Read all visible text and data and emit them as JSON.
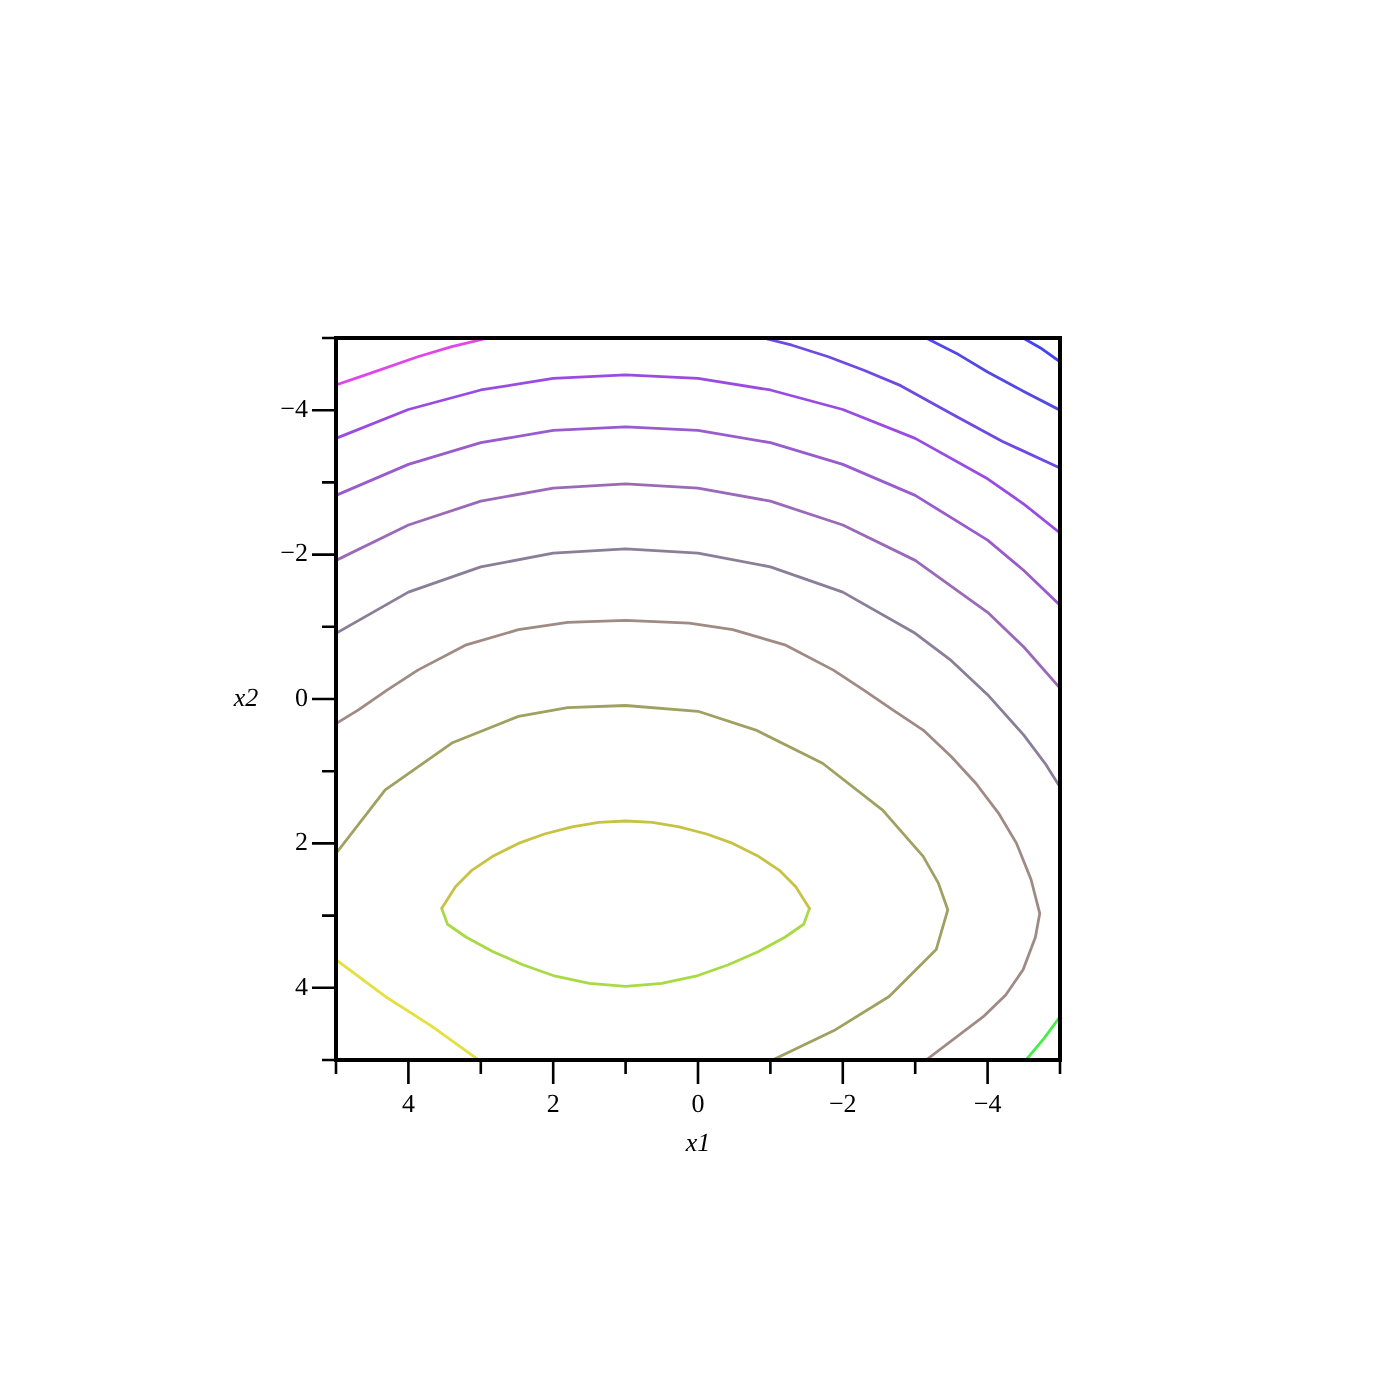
{
  "chart_data": {
    "type": "line",
    "xlabel": "x1",
    "ylabel": "x2",
    "xlim": [
      5,
      -5
    ],
    "ylim": [
      5,
      -5
    ],
    "xticks": [
      {
        "value": 5,
        "label": null
      },
      4,
      {
        "value": 3,
        "label": null
      },
      2,
      {
        "value": 1,
        "label": null
      },
      0,
      {
        "value": -1,
        "label": null
      },
      -2,
      {
        "value": -3,
        "label": null
      },
      -4,
      {
        "value": -5,
        "label": null
      }
    ],
    "yticks": [
      {
        "value": -5,
        "label": null
      },
      -4,
      {
        "value": -3,
        "label": null
      },
      -2,
      {
        "value": -1,
        "label": null
      },
      0,
      {
        "value": 1,
        "label": null
      },
      2,
      {
        "value": 3,
        "label": null
      },
      4,
      {
        "value": 5,
        "label": null
      }
    ],
    "series": [
      {
        "x": [
          -4.49,
          -4.75,
          -5
        ],
        "values": [
          -5,
          -4.85,
          -4.67
        ],
        "color": "#4444ee"
      },
      {
        "x": [
          -3.15,
          -3.6,
          -4,
          -4.5,
          -5
        ],
        "values": [
          -5,
          -4.77,
          -4.53,
          -4.26,
          -4
        ],
        "color": "#5248e6"
      },
      {
        "x": [
          5,
          4.5,
          3.87,
          3.4,
          2.9
        ],
        "values": [
          -4.35,
          -4.52,
          -4.74,
          -4.88,
          -5
        ],
        "color": "#e046e8"
      },
      {
        "x": [
          -0.9,
          -1.3,
          -1.8,
          -2.3,
          -2.8,
          -3.5,
          -4.2,
          -5
        ],
        "values": [
          -5,
          -4.9,
          -4.74,
          -4.55,
          -4.34,
          -3.95,
          -3.57,
          -3.2
        ],
        "color": "#6e4ae2"
      },
      {
        "x": [
          5,
          4,
          3,
          2,
          1,
          0,
          -1,
          -2,
          -3,
          -4,
          -4.5,
          -5
        ],
        "values": [
          -3.61,
          -4.01,
          -4.28,
          -4.44,
          -4.49,
          -4.44,
          -4.28,
          -4.01,
          -3.61,
          -3.05,
          -2.7,
          -2.3
        ],
        "color": "#9a4ce2"
      },
      {
        "x": [
          5,
          4,
          3,
          2,
          1,
          0,
          -1,
          -2,
          -3,
          -4,
          -4.5,
          -5
        ],
        "values": [
          -2.82,
          -3.25,
          -3.55,
          -3.72,
          -3.77,
          -3.72,
          -3.55,
          -3.25,
          -2.82,
          -2.2,
          -1.78,
          -1.3
        ],
        "color": "#9a5ccc"
      },
      {
        "x": [
          5,
          4,
          3,
          2,
          1,
          0,
          -1,
          -2,
          -3,
          -4,
          -4.5,
          -5
        ],
        "values": [
          -1.92,
          -2.41,
          -2.74,
          -2.92,
          -2.98,
          -2.92,
          -2.74,
          -2.41,
          -1.92,
          -1.2,
          -0.72,
          -0.15
        ],
        "color": "#9a6ab8"
      },
      {
        "x": [
          5,
          4,
          3,
          2,
          1,
          0,
          -1,
          -2,
          -3,
          -3.5,
          -4,
          -4.5,
          -4.8,
          -5
        ],
        "values": [
          -0.91,
          -1.48,
          -1.83,
          -2.02,
          -2.08,
          -2.02,
          -1.83,
          -1.48,
          -0.91,
          -0.53,
          -0.06,
          0.5,
          0.9,
          1.22
        ],
        "color": "#8a7e98"
      },
      {
        "x": [
          -5,
          -4.78,
          -4.53
        ],
        "values": [
          4.4,
          4.7,
          5
        ],
        "color": "#44ee48"
      },
      {
        "x": [
          5,
          4.69,
          4.3,
          3.87,
          3.2,
          2.48,
          1.8,
          1,
          0.12,
          -0.48,
          -1.2,
          -1.87,
          -2.28,
          -2.69,
          -3.11,
          -3.5,
          -3.84,
          -4.15,
          -4.4,
          -4.6,
          -4.72,
          -4.66,
          -4.49,
          -4.25,
          -3.94,
          -3.15
        ],
        "values": [
          0.34,
          0.15,
          -0.12,
          -0.4,
          -0.75,
          -0.96,
          -1.06,
          -1.09,
          -1.05,
          -0.96,
          -0.75,
          -0.4,
          -0.13,
          0.15,
          0.43,
          0.8,
          1.17,
          1.58,
          2,
          2.5,
          2.97,
          3.3,
          3.75,
          4.1,
          4.4,
          5
        ],
        "color": "#a08a84"
      },
      {
        "x": [
          5,
          4.32,
          3.4,
          2.48,
          1.8,
          1,
          0,
          -0.8,
          -1.72,
          -2.55,
          -3.11,
          -3.32,
          -3.45,
          -3.29,
          -2.64,
          -1.9,
          -1.03
        ],
        "values": [
          2.14,
          1.26,
          0.61,
          0.24,
          0.12,
          0.09,
          0.17,
          0.43,
          0.89,
          1.54,
          2.18,
          2.55,
          2.92,
          3.47,
          4.12,
          4.58,
          5
        ],
        "color": "#a0a060"
      },
      {
        "x": [
          5,
          4.32,
          3.68,
          3.03
        ],
        "values": [
          3.61,
          4.12,
          4.53,
          5
        ],
        "color": "#e4e040"
      },
      {
        "x": [
          3.54,
          3.35,
          3.12,
          2.82,
          2.48,
          2.12,
          1.74,
          1.37,
          1,
          0.63,
          0.26,
          -0.12,
          -0.48,
          -0.82,
          -1.12,
          -1.35,
          -1.54
        ],
        "values": [
          2.9,
          2.6,
          2.37,
          2.17,
          2,
          1.87,
          1.77,
          1.71,
          1.69,
          1.71,
          1.77,
          1.87,
          2,
          2.17,
          2.37,
          2.6,
          2.9
        ],
        "color": "#c8c244"
      },
      {
        "x": [
          -1.54,
          -1.46,
          -1.2,
          -0.83,
          -0.42,
          0,
          0.5,
          1,
          1.5,
          2,
          2.42,
          2.83,
          3.2,
          3.46,
          3.54
        ],
        "values": [
          2.9,
          3.12,
          3.3,
          3.5,
          3.68,
          3.83,
          3.94,
          3.98,
          3.94,
          3.83,
          3.68,
          3.5,
          3.3,
          3.12,
          2.9
        ],
        "color": "#a8da44"
      }
    ]
  }
}
